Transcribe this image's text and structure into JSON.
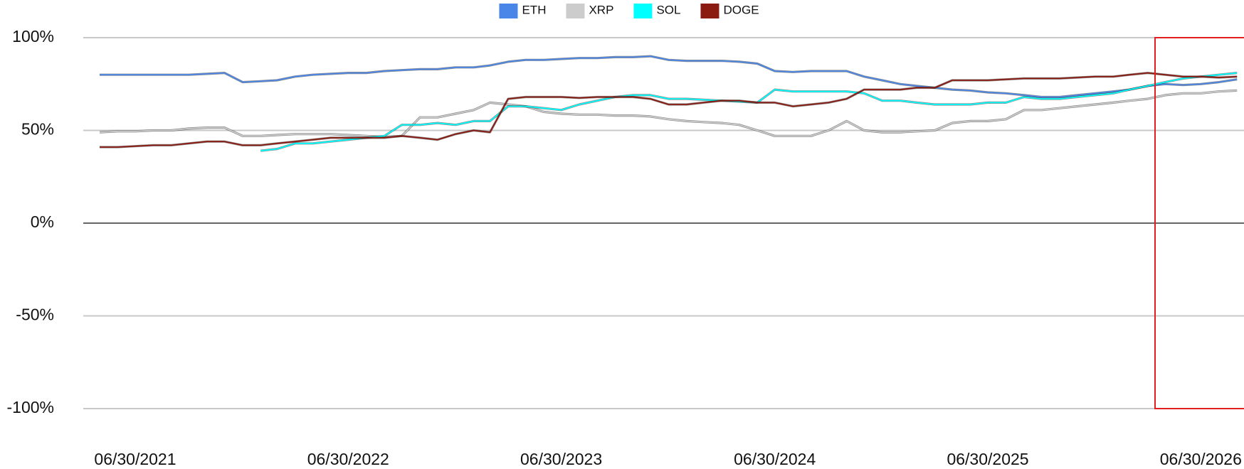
{
  "chart_data": {
    "type": "line",
    "x": [
      "04/30/2021",
      "05/31/2021",
      "06/30/2021",
      "07/31/2021",
      "08/31/2021",
      "09/30/2021",
      "10/31/2021",
      "11/30/2021",
      "12/31/2021",
      "01/31/2022",
      "02/28/2022",
      "03/31/2022",
      "04/30/2022",
      "05/31/2022",
      "06/30/2022",
      "07/31/2022",
      "08/31/2022",
      "09/30/2022",
      "10/31/2022",
      "11/30/2022",
      "12/31/2022",
      "01/31/2023",
      "02/28/2023",
      "03/31/2023",
      "04/30/2023",
      "05/31/2023",
      "06/30/2023",
      "07/31/2023",
      "08/31/2023",
      "09/30/2023",
      "10/31/2023",
      "11/30/2023",
      "12/31/2023",
      "01/31/2024",
      "02/29/2024",
      "03/31/2024",
      "04/30/2024",
      "05/31/2024",
      "06/30/2024",
      "07/31/2024",
      "08/31/2024",
      "09/30/2024",
      "10/31/2024",
      "11/30/2024",
      "12/31/2024",
      "01/31/2025",
      "02/28/2025",
      "03/31/2025",
      "04/30/2025",
      "05/31/2025",
      "06/30/2025",
      "07/31/2025",
      "08/31/2025",
      "09/30/2025",
      "10/31/2025",
      "11/30/2025",
      "12/31/2025",
      "01/31/2026",
      "02/28/2026",
      "03/31/2026",
      "04/30/2026",
      "05/31/2026",
      "06/30/2026",
      "07/31/2026",
      "08/31/2026"
    ],
    "series": [
      {
        "name": "ETH",
        "color": "#4a86e8",
        "values": [
          80,
          80,
          80,
          80,
          80,
          80,
          80.5,
          81,
          76,
          76.5,
          77,
          79,
          80,
          80.5,
          81,
          81,
          82,
          82.5,
          83,
          83,
          84,
          84,
          85,
          87,
          88,
          88,
          88.5,
          89,
          89,
          89.5,
          89.5,
          90,
          88,
          87.5,
          87.5,
          87.5,
          87,
          86,
          82,
          81.5,
          82,
          82,
          82,
          79,
          77,
          75,
          74,
          73,
          72,
          71.5,
          70.5,
          70,
          69,
          68,
          68,
          69,
          70,
          71,
          72,
          74,
          75,
          74.5,
          75,
          76,
          77.5
        ]
      },
      {
        "name": "XRP",
        "color": "#cccccc",
        "values": [
          49,
          49.5,
          49.5,
          50,
          50,
          51,
          51.5,
          51.5,
          47,
          47,
          47.5,
          48,
          48,
          48,
          47.5,
          47,
          46.5,
          47,
          57,
          57,
          59,
          61,
          65,
          64,
          63,
          60,
          59,
          58.5,
          58.5,
          58,
          58,
          57.5,
          56,
          55,
          54.5,
          54,
          53,
          50,
          47,
          47,
          47,
          50,
          55,
          50,
          49,
          49,
          49.5,
          50,
          54,
          55,
          55,
          56,
          61,
          61,
          62,
          63,
          64,
          65,
          66,
          67,
          69,
          70,
          70,
          71,
          71.5
        ]
      },
      {
        "name": "SOL",
        "color": "#00ffff",
        "values": [
          null,
          null,
          null,
          null,
          null,
          null,
          null,
          null,
          null,
          39,
          40,
          43,
          43,
          44,
          45,
          46,
          47,
          53,
          53,
          54,
          53,
          55,
          55,
          63,
          63,
          62,
          61,
          64,
          66,
          68,
          69,
          69,
          67,
          67,
          66.5,
          66,
          65.5,
          65,
          72,
          71,
          71,
          71,
          71,
          70,
          66,
          66,
          65,
          64,
          64,
          64,
          65,
          65,
          68,
          67,
          67,
          68,
          69,
          70,
          72,
          74,
          76,
          78,
          79,
          80,
          81
        ]
      },
      {
        "name": "DOGE",
        "color": "#8b1a10",
        "values": [
          41,
          41,
          41.5,
          42,
          42,
          43,
          44,
          44,
          42,
          42,
          43,
          44,
          45,
          46,
          46,
          46,
          46,
          47,
          46,
          45,
          48,
          50,
          49,
          67,
          68,
          68,
          68,
          67.5,
          68,
          68,
          68,
          67,
          64,
          64,
          65,
          66,
          66,
          65,
          65,
          63,
          64,
          65,
          67,
          72,
          72,
          72,
          73,
          73,
          77,
          77,
          77,
          77.5,
          78,
          78,
          78,
          78.5,
          79,
          79,
          80,
          81,
          80,
          79,
          79,
          78.5,
          79
        ]
      }
    ],
    "xlim": [
      "04/02/2021",
      "09/12/2026"
    ],
    "xticks": [
      "06/30/2021",
      "06/30/2022",
      "06/30/2023",
      "06/30/2024",
      "06/30/2025",
      "06/30/2026"
    ],
    "ylim": [
      -100,
      100
    ],
    "yticks": [
      {
        "value": -100,
        "label": "-100%"
      },
      {
        "value": -50,
        "label": "-50%"
      },
      {
        "value": 0,
        "label": "0%"
      },
      {
        "value": 50,
        "label": "50%"
      },
      {
        "value": 100,
        "label": "100%"
      }
    ],
    "grid": true,
    "legend": "top"
  }
}
